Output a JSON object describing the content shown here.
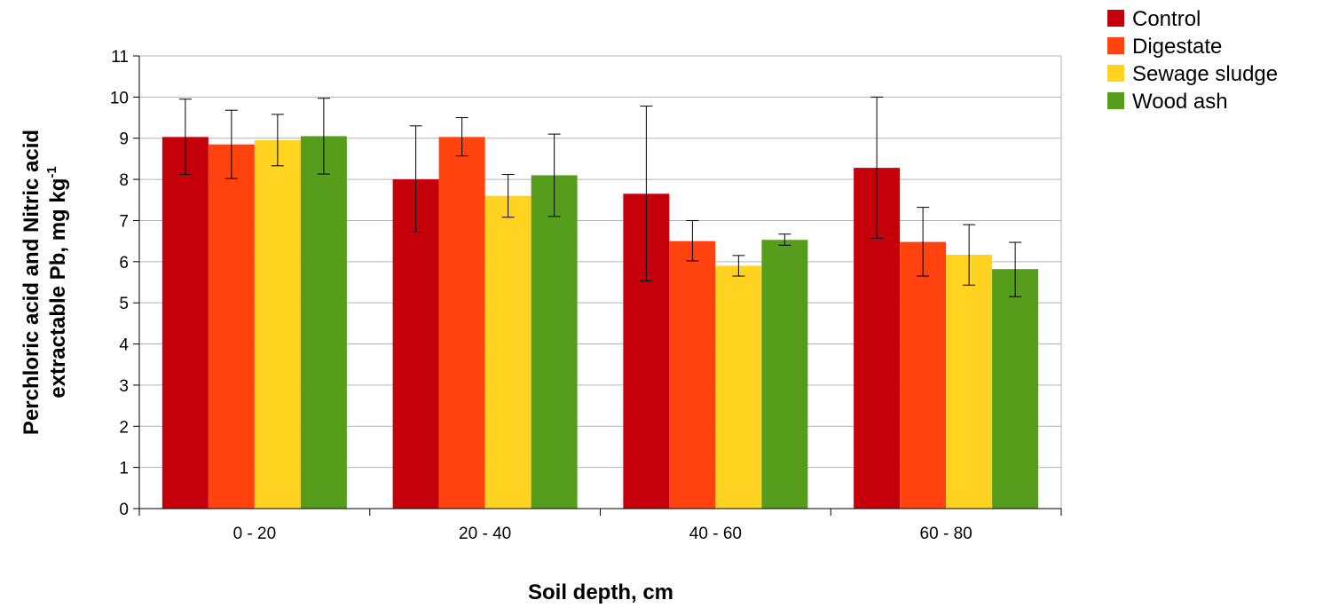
{
  "chart_data": {
    "type": "bar",
    "title": "",
    "xlabel": "Soil depth, cm",
    "ylabel_line1": "Perchloric acid and Nitric acid",
    "ylabel_line2": "extractable Pb, mg kg",
    "ylabel_sup": "-1",
    "categories": [
      "0 - 20",
      "20 - 40",
      "40 - 60",
      "60 - 80"
    ],
    "ylim": [
      0,
      11
    ],
    "yticks": [
      0,
      1,
      2,
      3,
      4,
      5,
      6,
      7,
      8,
      9,
      10,
      11
    ],
    "grid": true,
    "legend_position": "top-right",
    "series": [
      {
        "name": "Control",
        "color": "#c5000b",
        "values": [
          9.03,
          8.0,
          7.65,
          8.28
        ],
        "err_low": [
          8.12,
          6.72,
          5.53,
          6.57
        ],
        "err_high": [
          9.95,
          9.3,
          9.78,
          10.0
        ]
      },
      {
        "name": "Digestate",
        "color": "#ff420e",
        "values": [
          8.85,
          9.03,
          6.5,
          6.48
        ],
        "err_low": [
          8.02,
          8.57,
          6.02,
          5.65
        ],
        "err_high": [
          9.68,
          9.5,
          7.0,
          7.32
        ]
      },
      {
        "name": "Sewage sludge",
        "color": "#ffd320",
        "values": [
          8.95,
          7.6,
          5.9,
          6.17
        ],
        "err_low": [
          8.33,
          7.08,
          5.65,
          5.43
        ],
        "err_high": [
          9.58,
          8.12,
          6.15,
          6.9
        ]
      },
      {
        "name": "Wood ash",
        "color": "#579d1c",
        "values": [
          9.05,
          8.1,
          6.53,
          5.82
        ],
        "err_low": [
          8.13,
          7.1,
          6.4,
          5.15
        ],
        "err_high": [
          9.97,
          9.1,
          6.67,
          6.47
        ]
      }
    ]
  }
}
